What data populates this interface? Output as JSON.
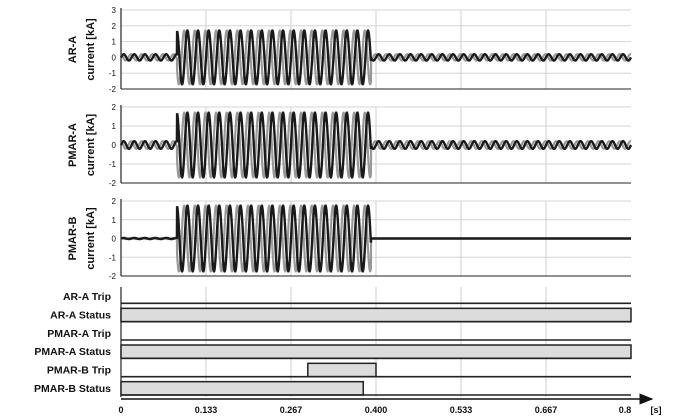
{
  "chart_data": {
    "type": "line",
    "x_ticks": [
      "0",
      "0.133",
      "0.267",
      "0.400",
      "0.533",
      "0.667",
      "0.8"
    ],
    "x_unit": "[s]",
    "xlim": [
      0,
      0.8
    ],
    "grid": true,
    "panels": [
      {
        "id": "ar-a",
        "ylabel": [
          "AR-A",
          "current [kA]"
        ],
        "ylim": [
          -2,
          3
        ],
        "y_ticks": [
          "3",
          "2",
          "1",
          "0",
          "-1",
          "-2"
        ],
        "pre_amplitude": 0.2,
        "fault_amplitude": 1.7,
        "post_amplitude": 0.2,
        "fault_start": 0.088,
        "fault_end": 0.392,
        "colors": [
          "#1a1a1a",
          "#999999"
        ]
      },
      {
        "id": "pmar-a",
        "ylabel": [
          "PMAR-A",
          "current [kA]"
        ],
        "ylim": [
          -2,
          2
        ],
        "y_ticks": [
          "2",
          "1",
          "0",
          "-1",
          "-2"
        ],
        "pre_amplitude": 0.2,
        "fault_amplitude": 1.7,
        "post_amplitude": 0.2,
        "fault_start": 0.088,
        "fault_end": 0.392,
        "colors": [
          "#1a1a1a",
          "#999999"
        ]
      },
      {
        "id": "pmar-b",
        "ylabel": [
          "PMAR-B",
          "current [kA]"
        ],
        "ylim": [
          -2,
          2
        ],
        "y_ticks": [
          "2",
          "1",
          "0",
          "-1",
          "-2"
        ],
        "pre_amplitude": 0.03,
        "fault_amplitude": 1.75,
        "post_amplitude": 0,
        "fault_start": 0.088,
        "fault_end": 0.392,
        "colors": [
          "#1a1a1a",
          "#999999"
        ]
      }
    ],
    "digital_signals": [
      {
        "label": "AR-A Trip",
        "high": []
      },
      {
        "label": "AR-A Status",
        "high": [
          [
            0,
            0.8
          ]
        ]
      },
      {
        "label": "PMAR-A Trip",
        "high": []
      },
      {
        "label": "PMAR-A Status",
        "high": [
          [
            0,
            0.8
          ]
        ]
      },
      {
        "label": "PMAR-B Trip",
        "high": [
          [
            0.293,
            0.4
          ]
        ]
      },
      {
        "label": "PMAR-B Status",
        "high": [
          [
            0,
            0.38
          ]
        ]
      }
    ]
  }
}
